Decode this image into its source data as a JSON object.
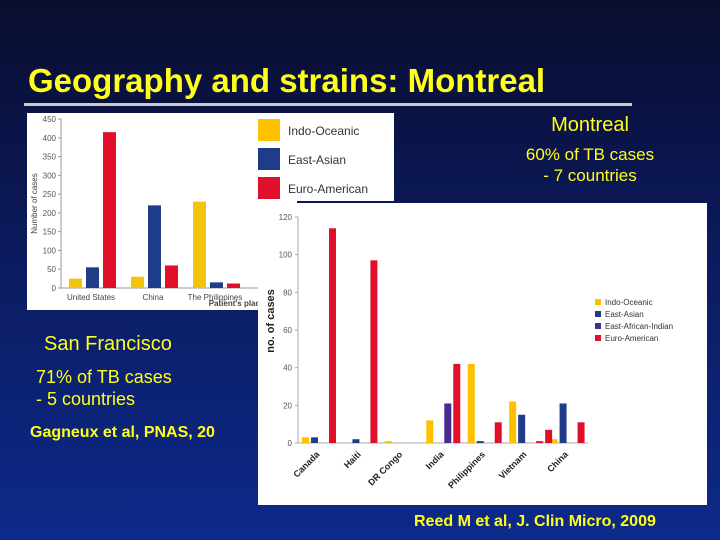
{
  "slide": {
    "title": "Geography and strains: Montreal",
    "montreal_heading": "Montreal",
    "montreal_line1": "60% of TB cases",
    "montreal_line2": "- 7 countries",
    "sf_heading": "San Francisco",
    "sf_line1": "71% of TB cases",
    "sf_line2": "- 5 countries",
    "citation_sf": "Gagneux et al, PNAS, 20",
    "citation_mt": "Reed M et al, J. Clin Micro, 2009",
    "text_color": "#ffff1a"
  },
  "legend": [
    {
      "label": "Indo-Oceanic",
      "color": "#ffc000"
    },
    {
      "label": "East-Asian",
      "color": "#1f3c88"
    },
    {
      "label": "Euro-American",
      "color": "#e0102a"
    }
  ],
  "chart_data": [
    {
      "type": "bar",
      "ylabel": "Number of cases",
      "xlabel": "Patient's place of birt",
      "ylim": [
        0,
        450
      ],
      "yticks": [
        0,
        50,
        100,
        150,
        200,
        250,
        300,
        350,
        400,
        450
      ],
      "categories": [
        "United States",
        "China",
        "The Philippines",
        ""
      ],
      "series": [
        {
          "name": "Indo-Oceanic",
          "color": "#f2c40e",
          "values": [
            25,
            30,
            230,
            0
          ]
        },
        {
          "name": "East-Asian",
          "color": "#1f3c88",
          "values": [
            55,
            220,
            15,
            0
          ]
        },
        {
          "name": "Euro-American",
          "color": "#e0102a",
          "values": [
            415,
            60,
            12,
            0
          ]
        }
      ]
    },
    {
      "type": "bar",
      "ylabel": "no. of cases",
      "ylim": [
        0,
        120
      ],
      "yticks": [
        0,
        20,
        40,
        60,
        80,
        100,
        120
      ],
      "categories": [
        "Canada",
        "Haiti",
        "DR Congo",
        "India",
        "Philippines",
        "Vietnam",
        "China"
      ],
      "series": [
        {
          "name": "Indo-Oceanic",
          "color": "#ffc000",
          "values": [
            3,
            0,
            1,
            12,
            42,
            22,
            2
          ]
        },
        {
          "name": "East-Asian",
          "color": "#1f3c88",
          "values": [
            3,
            2,
            0,
            0,
            1,
            15,
            21
          ]
        },
        {
          "name": "East-African-Indian",
          "color": "#4b2a8f",
          "values": [
            0,
            0,
            0,
            21,
            0,
            0,
            0
          ]
        },
        {
          "name": "Euro-American",
          "color": "#e0102a",
          "values": [
            114,
            97,
            0,
            42,
            11,
            1,
            11
          ]
        }
      ],
      "extra_bars": [
        {
          "category_index": 5,
          "series": "Euro-American",
          "value": 7,
          "note": "second red bar"
        }
      ],
      "legend_position": "right",
      "grid": false
    }
  ]
}
